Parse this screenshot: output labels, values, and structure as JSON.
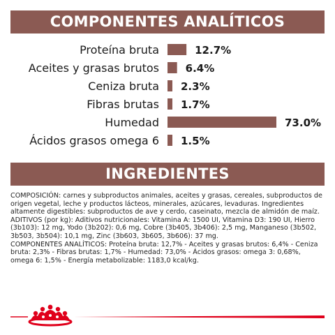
{
  "header_analytic": "COMPONENTES ANALÍTICOS",
  "header_ingredients": "INGREDIENTES",
  "chart_data": {
    "type": "bar",
    "orientation": "horizontal",
    "categories": [
      "Proteína bruta",
      "Aceites y grasas brutos",
      "Ceniza bruta",
      "Fibras brutas",
      "Humedad",
      "Ácidos grasos omega 6"
    ],
    "values": [
      12.7,
      6.4,
      2.3,
      1.7,
      73.0,
      1.5
    ],
    "value_labels": [
      "12.7%",
      "6.4%",
      "2.3%",
      "1.7%",
      "73.0%",
      "1.5%"
    ],
    "bar_color": "#8b5a53",
    "xlim": [
      0,
      73
    ]
  },
  "ingredients": {
    "composition": "COMPOSICIÓN: carnes y subproductos animales, aceites y grasas, cereales, subproductos de origen vegetal, leche y productos lácteos, minerales, azúcares, levaduras. Ingredientes altamente digestibles: subproductos de ave y cerdo, caseinato, mezcla de almidón de maíz.",
    "additives": "ADITIVOS (por kg): Aditivos nutricionales: Vitamina A: 1500 UI, Vitamina D3: 190 UI, Hierro (3b103): 12 mg, Yodo (3b202): 0,6 mg, Cobre (3b405, 3b406): 2,5 mg, Manganeso (3b502, 3b503, 3b504): 10,1 mg, Zinc (3b603, 3b605, 3b606): 37 mg.",
    "components": "COMPONENTES ANALÍTICOS: Proteína bruta: 12,7% - Aceites y grasas brutos: 6,4% - Ceniza bruta: 2,3% - Fibras brutas: 1,7% - Humedad: 73,0% - Ácidos grasos: omega 3: 0,68%, omega 6: 1,5% - Energía metabolizable: 1183,0 kcal/kg."
  },
  "colors": {
    "brand_red": "#e0001b",
    "banner": "#8b5a53"
  },
  "logo_icon": "royal-canin-crown-icon"
}
